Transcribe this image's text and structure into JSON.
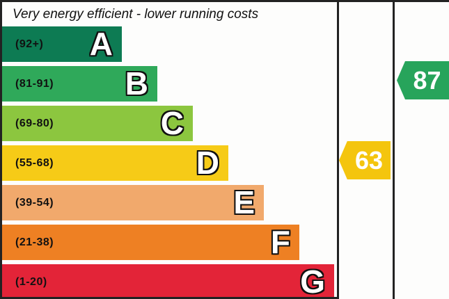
{
  "chart_data": {
    "type": "bar",
    "title": "Very energy efficient - lower running costs",
    "categories": [
      "A",
      "B",
      "C",
      "D",
      "E",
      "F",
      "G"
    ],
    "bands": [
      {
        "letter": "A",
        "range": "(92+)",
        "color": "#0d7b53"
      },
      {
        "letter": "B",
        "range": "(81-91)",
        "color": "#2fa95a"
      },
      {
        "letter": "C",
        "range": "(69-80)",
        "color": "#8cc63f"
      },
      {
        "letter": "D",
        "range": "(55-68)",
        "color": "#f6cb17"
      },
      {
        "letter": "E",
        "range": "(39-54)",
        "color": "#f1a96c"
      },
      {
        "letter": "F",
        "range": "(21-38)",
        "color": "#ee8023"
      },
      {
        "letter": "G",
        "range": "(1-20)",
        "color": "#e32438"
      }
    ],
    "current": {
      "value": "63",
      "color": "#f4c50e",
      "aligns_with_band": "D"
    },
    "potential": {
      "value": "87",
      "color": "#27a45b",
      "aligns_with_band": "B"
    },
    "layout_hints": {
      "legend": "none",
      "grid": "off",
      "bar_direction": "horizontal",
      "columns": [
        "chart",
        "current",
        "potential"
      ]
    },
    "colors": {
      "divider_line": "#222222",
      "title_text": "#111111",
      "marker_text": "#ffffff",
      "background": "#fdfdfc"
    }
  }
}
